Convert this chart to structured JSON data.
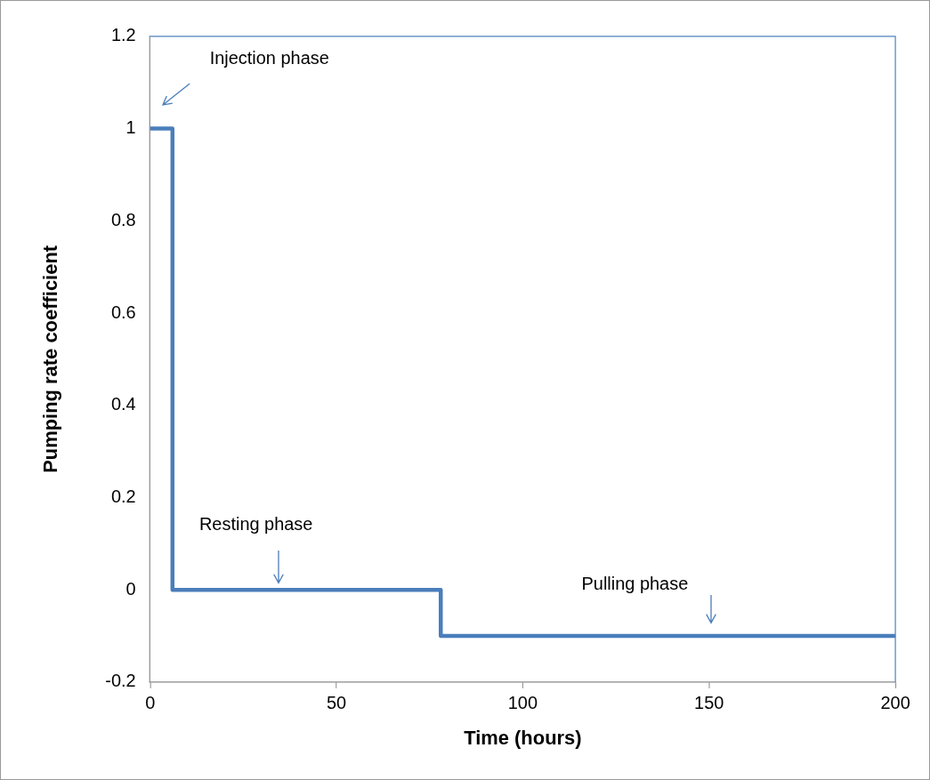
{
  "chart_data": {
    "type": "step",
    "xlabel": "Time (hours)",
    "ylabel": "Pumping rate coefficient",
    "x": [
      0,
      6,
      78,
      200
    ],
    "series": [
      {
        "color": "#4a7ebb",
        "values": [
          1,
          0,
          -0.1,
          -0.1
        ]
      }
    ],
    "xlim": [
      0,
      200
    ],
    "xticks": [
      0,
      50,
      100,
      150,
      200
    ],
    "ylim": [
      -0.2,
      1.2
    ],
    "yticks": [
      -0.2,
      0,
      0.2,
      0.4,
      0.6,
      0.8,
      1,
      1.2
    ],
    "grid": false,
    "legend": false,
    "marker": "none",
    "line_style": "solid",
    "annotations": [
      "Injection phase",
      "Resting phase",
      "Pulling phase"
    ]
  }
}
